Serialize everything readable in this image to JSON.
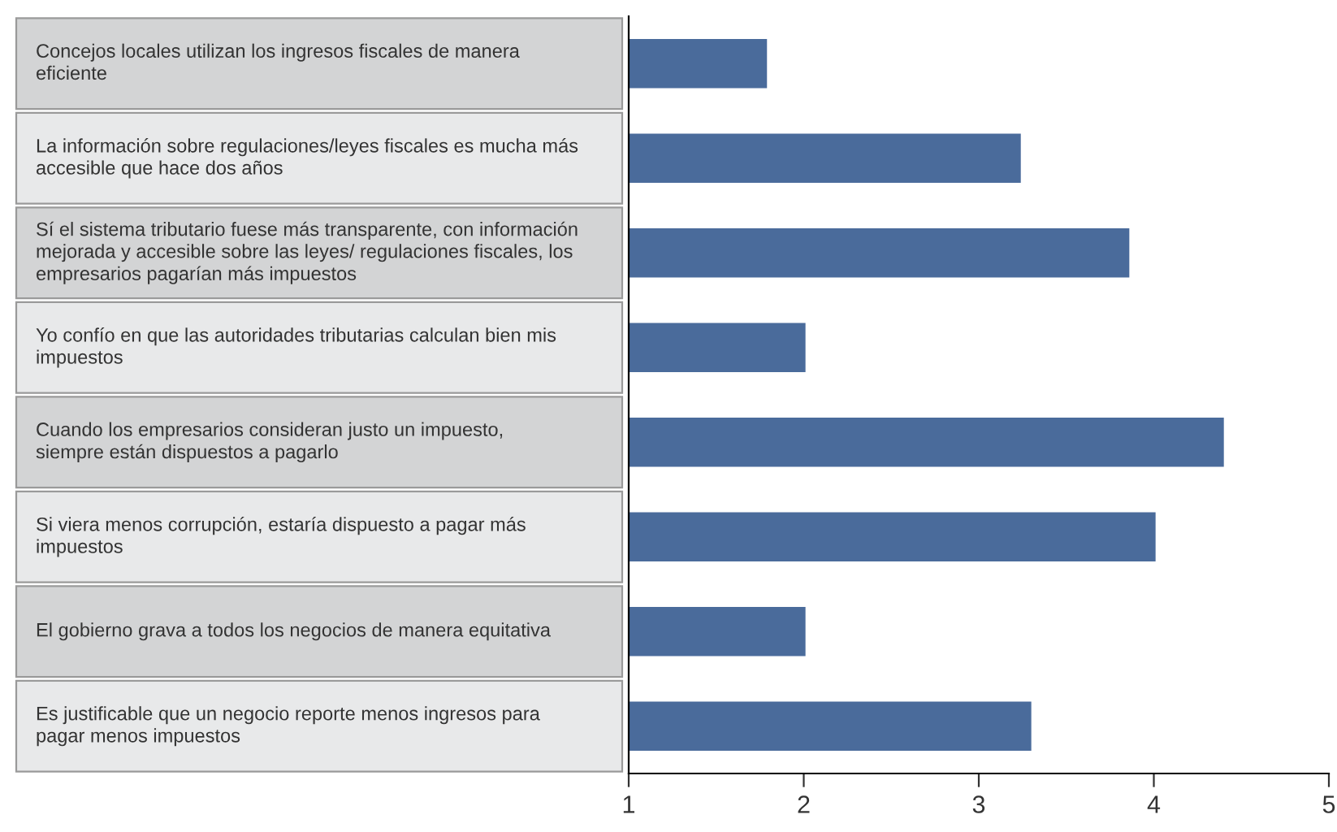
{
  "chart_data": {
    "type": "bar",
    "orientation": "horizontal",
    "categories": [
      "Concejos locales utilizan los ingresos fiscales de manera\neficiente",
      "La información sobre regulaciones/leyes fiscales es mucha más\naccesible que hace dos años",
      "Sí el sistema tributario fuese más transparente, con información\nmejorada y accesible sobre las leyes/ regulaciones fiscales, los\nempresarios pagarían más impuestos",
      "Yo confío en que las autoridades tributarias calculan bien mis\nimpuestos",
      "Cuando los empresarios consideran justo un impuesto,\nsiempre están dispuestos a pagarlo",
      "Si viera menos corrupción, estaría dispuesto a pagar más\nimpuestos",
      "El gobierno grava a todos los negocios de manera equitativa",
      "Es justificable que un negocio reporte menos ingresos para\npagar menos impuestos"
    ],
    "values": [
      1.79,
      3.24,
      3.86,
      2.01,
      4.4,
      4.01,
      2.01,
      3.3
    ],
    "color": "#4a6b9b",
    "xlim": [
      1,
      5
    ],
    "xticks": [
      1,
      2,
      3,
      4,
      5
    ],
    "grid": false,
    "legend": false
  }
}
